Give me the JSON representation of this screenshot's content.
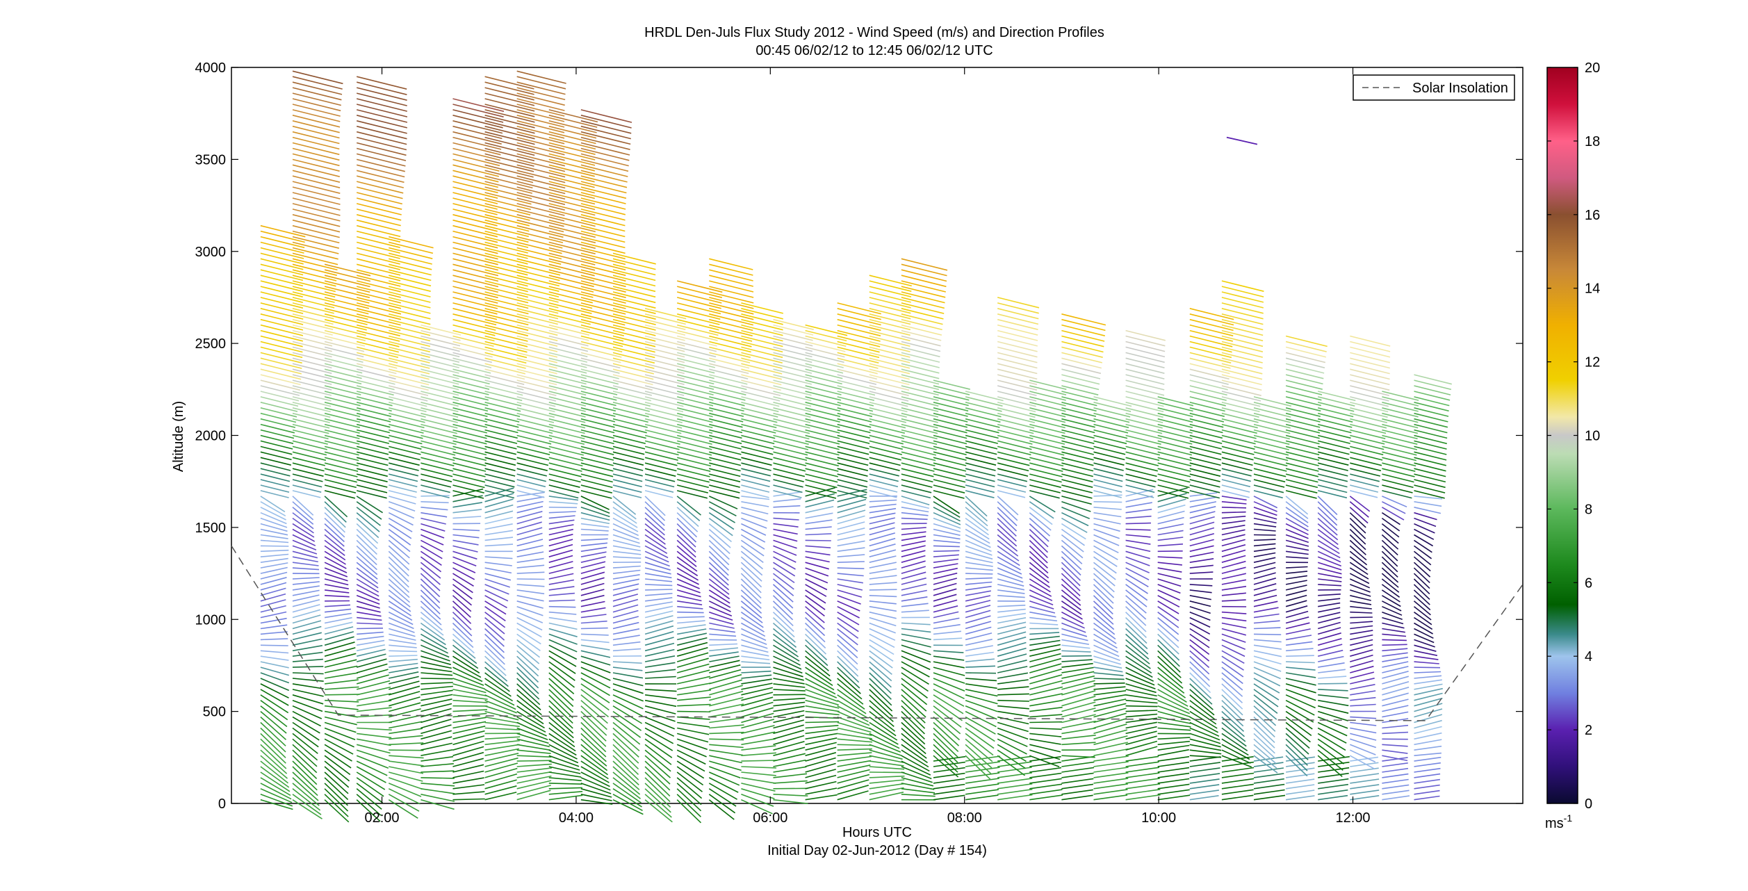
{
  "chart_data": {
    "type": "wind-barb-profile",
    "title": "HRDL Den-Juls Flux Study 2012 - Wind Speed (m/s) and Direction Profiles",
    "subtitle": "00:45 06/02/12 to 12:45 06/02/12  UTC",
    "xlabel": "Hours UTC",
    "xlabel2": "Initial Day 02-Jun-2012 (Day # 154)",
    "ylabel": "Altitude (m)",
    "xlim_hours": [
      0.45,
      13.75
    ],
    "ylim": [
      0,
      4000
    ],
    "x_ticks": [
      {
        "hour": 2,
        "label": "02:00"
      },
      {
        "hour": 4,
        "label": "04:00"
      },
      {
        "hour": 6,
        "label": "06:00"
      },
      {
        "hour": 8,
        "label": "08:00"
      },
      {
        "hour": 10,
        "label": "10:00"
      },
      {
        "hour": 12,
        "label": "12:00"
      }
    ],
    "y_ticks": [
      0,
      500,
      1000,
      1500,
      2000,
      2500,
      3000,
      3500,
      4000
    ],
    "colorbar": {
      "range": [
        0,
        20
      ],
      "ticks": [
        0,
        2,
        4,
        6,
        8,
        10,
        12,
        14,
        16,
        18,
        20
      ],
      "unit_base": "ms",
      "unit_exp": "-1",
      "stops": [
        {
          "v": 0,
          "c": "#0a0a30"
        },
        {
          "v": 1,
          "c": "#30107a"
        },
        {
          "v": 2,
          "c": "#5a20b0"
        },
        {
          "v": 3,
          "c": "#7080e0"
        },
        {
          "v": 4,
          "c": "#9ec4ec"
        },
        {
          "v": 4.6,
          "c": "#3a8a8a"
        },
        {
          "v": 5.4,
          "c": "#006000"
        },
        {
          "v": 6.5,
          "c": "#1e8a1e"
        },
        {
          "v": 8,
          "c": "#5cb85c"
        },
        {
          "v": 9.5,
          "c": "#bcdcb4"
        },
        {
          "v": 10,
          "c": "#c8c8c8"
        },
        {
          "v": 10.5,
          "c": "#f2e8a8"
        },
        {
          "v": 11.5,
          "c": "#f0d000"
        },
        {
          "v": 13,
          "c": "#f0b000"
        },
        {
          "v": 14.5,
          "c": "#c88838"
        },
        {
          "v": 16,
          "c": "#8a5030"
        },
        {
          "v": 17,
          "c": "#d05a80"
        },
        {
          "v": 18,
          "c": "#ff6088"
        },
        {
          "v": 19,
          "c": "#d0103c"
        },
        {
          "v": 20,
          "c": "#a00020"
        }
      ]
    },
    "legend": {
      "label": "Solar Insolation",
      "style": "dashed",
      "placement": "top-right"
    },
    "solar_insolation": [
      {
        "hour": 0.45,
        "alt": 1400
      },
      {
        "hour": 1.55,
        "alt": 480
      },
      {
        "hour": 12.75,
        "alt": 450
      },
      {
        "hour": 13.75,
        "alt": 1190
      }
    ],
    "profile_times": [
      0.75,
      1.08,
      1.41,
      1.74,
      2.07,
      2.4,
      2.73,
      3.06,
      3.39,
      3.72,
      4.05,
      4.38,
      4.71,
      5.04,
      5.37,
      5.7,
      6.03,
      6.36,
      6.69,
      7.02,
      7.35,
      7.68,
      8.01,
      8.34,
      8.67,
      9.0,
      9.33,
      9.66,
      9.99,
      10.32,
      10.65,
      10.98,
      11.31,
      11.64,
      11.97,
      12.3,
      12.63
    ],
    "profile_tops": [
      3150,
      4000,
      2950,
      3950,
      3100,
      2620,
      3830,
      3950,
      3980,
      3780,
      3790,
      2990,
      2700,
      2860,
      2960,
      2730,
      2650,
      2600,
      2720,
      2870,
      2970,
      2300,
      2260,
      2770,
      2300,
      2680,
      2230,
      2590,
      2220,
      2710,
      2840,
      2210,
      2560,
      2240,
      2560,
      2250,
      2330
    ],
    "speed_profile": [
      {
        "alt": 0,
        "speed": 6.5
      },
      {
        "alt": 600,
        "speed": 6.5
      },
      {
        "alt": 800,
        "speed": 4.8
      },
      {
        "alt": 1100,
        "speed": 2.5
      },
      {
        "alt": 1500,
        "speed": 3.0
      },
      {
        "alt": 1900,
        "speed": 6.5
      },
      {
        "alt": 2300,
        "speed": 9.5
      },
      {
        "alt": 2700,
        "speed": 12.0
      },
      {
        "alt": 3200,
        "speed": 13.5
      },
      {
        "alt": 4000,
        "speed": 16.0
      }
    ],
    "upper_isolated_barbs": [
      {
        "hour": 10.7,
        "alt": 3620,
        "speed": 2
      }
    ]
  }
}
